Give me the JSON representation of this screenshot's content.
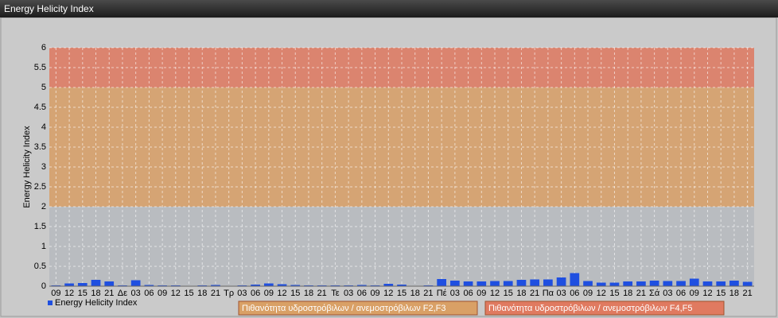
{
  "window_title": "Energy Helicity Index",
  "chart_data": {
    "type": "bar",
    "ylabel": "Energy Helicity Index",
    "categories": [
      "09",
      "12",
      "15",
      "18",
      "21",
      "Δε",
      "03",
      "06",
      "09",
      "12",
      "15",
      "18",
      "21",
      "Τρ",
      "03",
      "06",
      "09",
      "12",
      "15",
      "18",
      "21",
      "Τε",
      "03",
      "06",
      "09",
      "12",
      "15",
      "18",
      "21",
      "Πέ",
      "03",
      "06",
      "09",
      "12",
      "15",
      "18",
      "21",
      "Πα",
      "03",
      "06",
      "09",
      "12",
      "15",
      "18",
      "21",
      "Σά",
      "03",
      "06",
      "09",
      "12",
      "15",
      "18",
      "21"
    ],
    "series": [
      {
        "name": "Energy Helicity Index",
        "color": "#1f4fe0",
        "values": [
          0.02,
          0.07,
          0.08,
          0.16,
          0.12,
          0.02,
          0.15,
          0.03,
          0.02,
          0.02,
          0.01,
          0.02,
          0.03,
          0.01,
          0.02,
          0.04,
          0.07,
          0.05,
          0.03,
          0.02,
          0.02,
          0.02,
          0.02,
          0.03,
          0.02,
          0.06,
          0.04,
          0.01,
          0.02,
          0.18,
          0.14,
          0.12,
          0.12,
          0.13,
          0.13,
          0.16,
          0.17,
          0.17,
          0.22,
          0.33,
          0.13,
          0.09,
          0.09,
          0.12,
          0.12,
          0.14,
          0.13,
          0.13,
          0.19,
          0.12,
          0.12,
          0.14,
          0.11
        ]
      }
    ],
    "bands": [
      {
        "from": 2,
        "to": 5,
        "label": "Πιθανότητα υδροστρόβιλων / ανεμοστρόβιλων F2,F3",
        "color": "#d9a066"
      },
      {
        "from": 5,
        "to": 6,
        "label": "Πιθανότητα υδροστρόβιλων / ανεμοστρόβιλων F4,F5",
        "color": "#e07a60"
      }
    ],
    "ylim": [
      0,
      6
    ],
    "yticks": [
      0,
      0.5,
      1,
      1.5,
      2,
      2.5,
      3,
      3.5,
      4,
      4.5,
      5,
      5.5,
      6
    ],
    "grid": true
  }
}
